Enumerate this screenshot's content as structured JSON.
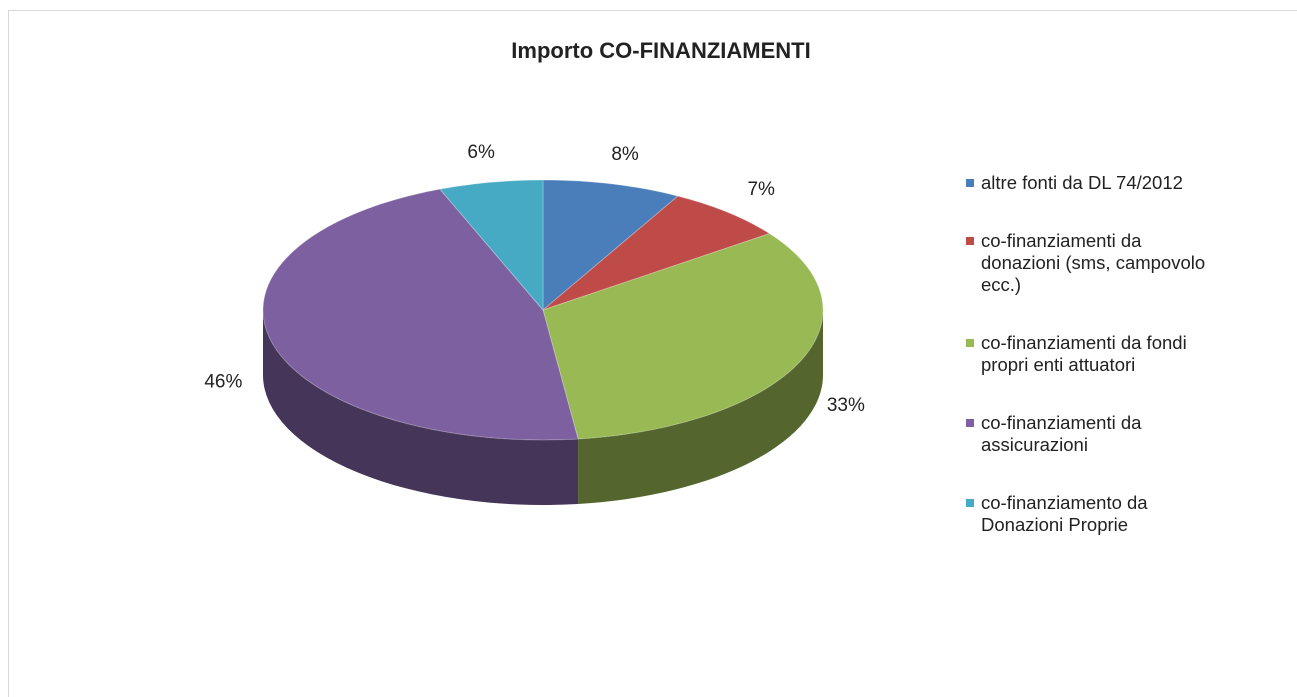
{
  "chart_data": {
    "type": "pie",
    "title": "Importo CO-FINANZIAMENTI",
    "categories": [
      "altre fonti da DL 74/2012",
      "co-finanziamenti da donazioni (sms, campovolo ecc.)",
      "co-finanziamenti da fondi propri enti attuatori",
      "co-finanziamenti da assicurazioni",
      "co-finanziamento da Donazioni Proprie"
    ],
    "values": [
      8,
      7,
      33,
      46,
      6
    ],
    "value_labels": [
      "8%",
      "7%",
      "33%",
      "46%",
      "6%"
    ],
    "colors": [
      "#4a7ebb",
      "#be4b48",
      "#98b954",
      "#7d60a0",
      "#46aac5"
    ],
    "legend": "right"
  }
}
